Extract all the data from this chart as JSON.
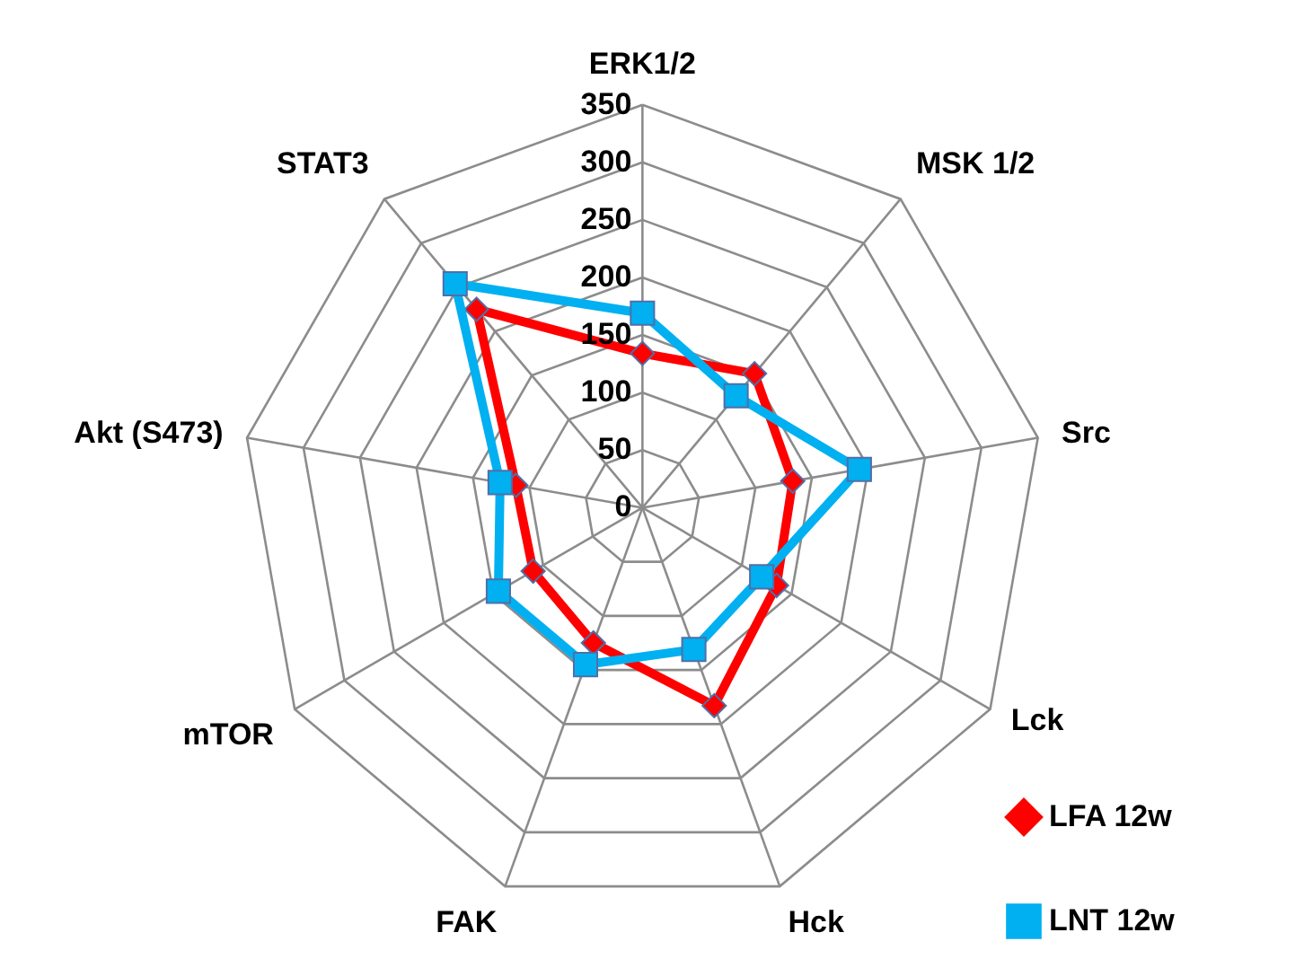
{
  "chart_data": {
    "type": "radar",
    "categories": [
      "ERK1/2",
      "MSK 1/2",
      "Src",
      "Lck",
      "Hck",
      "FAK",
      "mTOR",
      "Akt (S473)",
      "STAT3"
    ],
    "ylim": [
      0,
      350
    ],
    "yticks": [
      0,
      50,
      100,
      150,
      200,
      250,
      300,
      350
    ],
    "grid": true,
    "legend": "bottom right",
    "series": [
      {
        "name": "LFA 12w",
        "color": "#ff0000",
        "marker": "diamond",
        "values": [
          134,
          152,
          133,
          135,
          183,
          125,
          110,
          112,
          225
        ]
      },
      {
        "name": "LNT 12w",
        "color": "#00b0f0",
        "marker": "square",
        "values": [
          169,
          127,
          192,
          120,
          131,
          145,
          145,
          126,
          254
        ]
      }
    ]
  }
}
